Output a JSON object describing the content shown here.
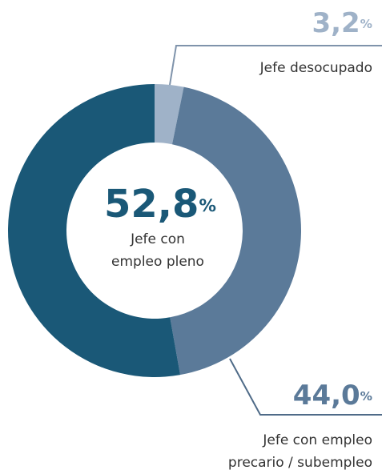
{
  "chart_data": {
    "type": "donut",
    "categories": [
      [
        "Jefe desocupado"
      ],
      [
        "Jefe con empleo",
        "precario / subempleo"
      ],
      [
        "Jefe con",
        "empleo pleno"
      ]
    ],
    "values": [
      3.2,
      44.0,
      52.8
    ],
    "value_labels": [
      "3,2%",
      "44,0%",
      "52,8%"
    ],
    "colors": [
      "#9fb2c8",
      "#5b7a99",
      "#1a5877"
    ]
  }
}
